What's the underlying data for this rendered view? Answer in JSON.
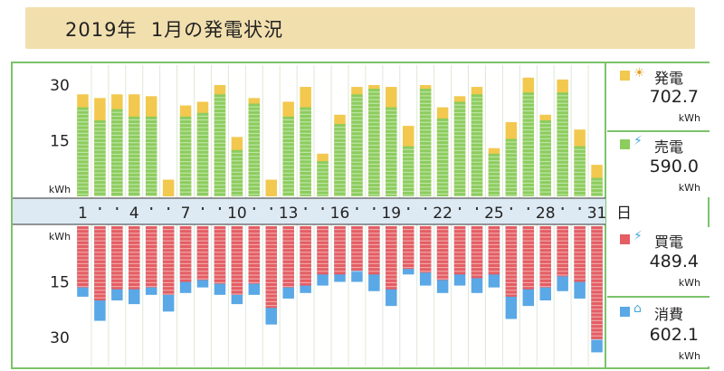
{
  "title": {
    "year": "2019年",
    "month": "1月の発電状況"
  },
  "chart_data": {
    "type": "bar",
    "x_unit_label": "日",
    "x_tick_labels": [
      "1",
      "4",
      "7",
      "10",
      "13",
      "16",
      "19",
      "22",
      "25",
      "28",
      "31"
    ],
    "days": [
      1,
      2,
      3,
      4,
      5,
      6,
      7,
      8,
      9,
      10,
      11,
      12,
      13,
      14,
      15,
      16,
      17,
      18,
      19,
      20,
      21,
      22,
      23,
      24,
      25,
      26,
      27,
      28,
      29,
      30,
      31
    ],
    "top": {
      "yunit": "kWh",
      "yticks": [
        15,
        30
      ],
      "ylim": [
        0,
        33
      ],
      "series": [
        {
          "name": "発電",
          "color": "#f2c84e",
          "values": [
            27.5,
            26.5,
            27.5,
            27.5,
            27.0,
            4.5,
            24.5,
            25.5,
            30.0,
            16.0,
            26.5,
            4.5,
            25.5,
            29.5,
            11.5,
            22.0,
            29.5,
            30.0,
            29.5,
            19.0,
            30.0,
            24.0,
            27.0,
            29.5,
            13.0,
            20.0,
            32.0,
            22.0,
            31.5,
            18.0,
            8.5
          ]
        },
        {
          "name": "売電",
          "color": "#8ccd5e",
          "values": [
            24.0,
            20.5,
            23.5,
            21.5,
            21.5,
            0.0,
            21.5,
            22.5,
            27.5,
            12.5,
            25.0,
            0.0,
            21.5,
            24.0,
            9.5,
            19.5,
            27.5,
            29.0,
            24.0,
            13.5,
            29.0,
            21.0,
            25.5,
            27.5,
            11.5,
            15.5,
            28.0,
            20.5,
            28.0,
            13.5,
            5.0
          ]
        }
      ]
    },
    "bottom": {
      "yunit": "kWh",
      "yticks": [
        15,
        30
      ],
      "ylim": [
        0,
        33
      ],
      "series": [
        {
          "name": "買電",
          "color": "#e45e63",
          "values": [
            16.5,
            20.0,
            17.0,
            17.0,
            16.5,
            18.5,
            15.0,
            14.5,
            15.5,
            18.5,
            15.5,
            22.0,
            16.5,
            16.0,
            13.0,
            13.0,
            12.0,
            13.0,
            17.0,
            11.5,
            12.5,
            14.5,
            13.0,
            14.0,
            13.0,
            19.0,
            17.0,
            16.5,
            13.5,
            15.0,
            30.5
          ]
        },
        {
          "name": "消費",
          "color": "#5aa8e6",
          "values": [
            19.0,
            25.5,
            20.0,
            21.0,
            18.5,
            23.0,
            18.0,
            16.5,
            18.5,
            21.0,
            18.5,
            26.5,
            19.5,
            18.0,
            16.0,
            15.0,
            15.0,
            17.5,
            21.5,
            13.0,
            16.0,
            18.0,
            16.0,
            18.0,
            16.5,
            25.0,
            21.5,
            20.0,
            17.5,
            19.5,
            34.0
          ]
        }
      ]
    }
  },
  "legend": [
    {
      "label": "発電",
      "value": "702.7",
      "unit": "kWh",
      "color": "#f2c84e",
      "icon": "sun-icon"
    },
    {
      "label": "売電",
      "value": "590.0",
      "unit": "kWh",
      "color": "#8ccd5e",
      "icon": "pylon-icon"
    },
    {
      "label": "買電",
      "value": "489.4",
      "unit": "kWh",
      "color": "#e45e63",
      "icon": "pylon-icon"
    },
    {
      "label": "消費",
      "value": "602.1",
      "unit": "kWh",
      "color": "#5aa8e6",
      "icon": "house-icon"
    }
  ]
}
